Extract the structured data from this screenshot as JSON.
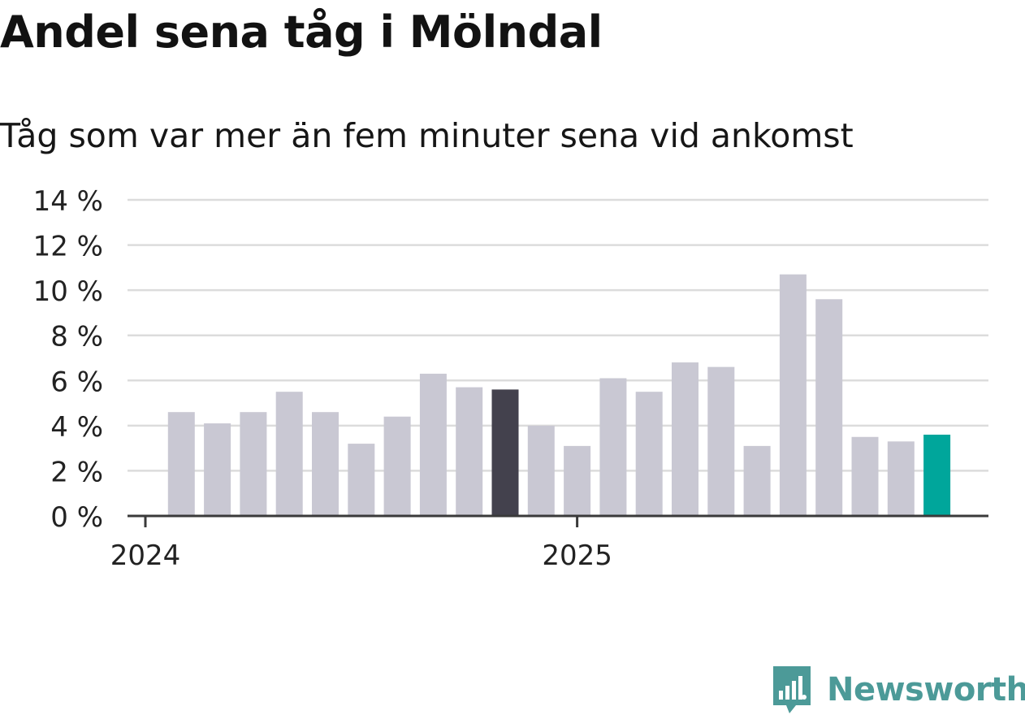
{
  "title": "Andel sena tåg i Mölndal",
  "subtitle": "Tåg som var mer än fem minuter sena vid ankomst",
  "brand": {
    "name": "Newsworthy",
    "icon": "newsworthy-logo-icon"
  },
  "colors": {
    "bar_default": "#c9c8d3",
    "bar_highlight_dark": "#43414d",
    "bar_highlight_teal": "#00a69b",
    "grid": "#dcdcdc",
    "axis": "#3a3a3a",
    "brand": "#4c9a98"
  },
  "chart_data": {
    "type": "bar",
    "title": "Andel sena tåg i Mölndal",
    "subtitle": "Tåg som var mer än fem minuter sena vid ankomst",
    "xlabel": "",
    "ylabel": "",
    "ylim": [
      0,
      14
    ],
    "yticks": [
      0,
      2,
      4,
      6,
      8,
      10,
      12,
      14
    ],
    "ytick_labels": [
      "0 %",
      "2 %",
      "4 %",
      "6 %",
      "8 %",
      "10 %",
      "12 %",
      "14 %"
    ],
    "xtick_labels": [
      {
        "label": "2024",
        "index": 0
      },
      {
        "label": "2025",
        "index": 12
      }
    ],
    "categories": [
      "2024-01",
      "2024-02",
      "2024-03",
      "2024-04",
      "2024-05",
      "2024-06",
      "2024-07",
      "2024-08",
      "2024-09",
      "2024-10",
      "2024-11",
      "2024-12",
      "2025-01",
      "2025-02",
      "2025-03",
      "2025-04",
      "2025-05",
      "2025-06",
      "2025-07",
      "2025-08",
      "2025-09",
      "2025-10",
      "2025-11",
      "2025-12"
    ],
    "values": [
      null,
      4.6,
      4.1,
      4.6,
      5.5,
      4.6,
      3.2,
      4.4,
      6.3,
      5.7,
      5.6,
      4.0,
      3.1,
      6.1,
      5.5,
      6.8,
      6.6,
      3.1,
      10.7,
      9.6,
      3.5,
      3.3,
      3.6,
      null
    ],
    "highlights": {
      "10": "dark",
      "22": "teal"
    },
    "grid": true
  }
}
